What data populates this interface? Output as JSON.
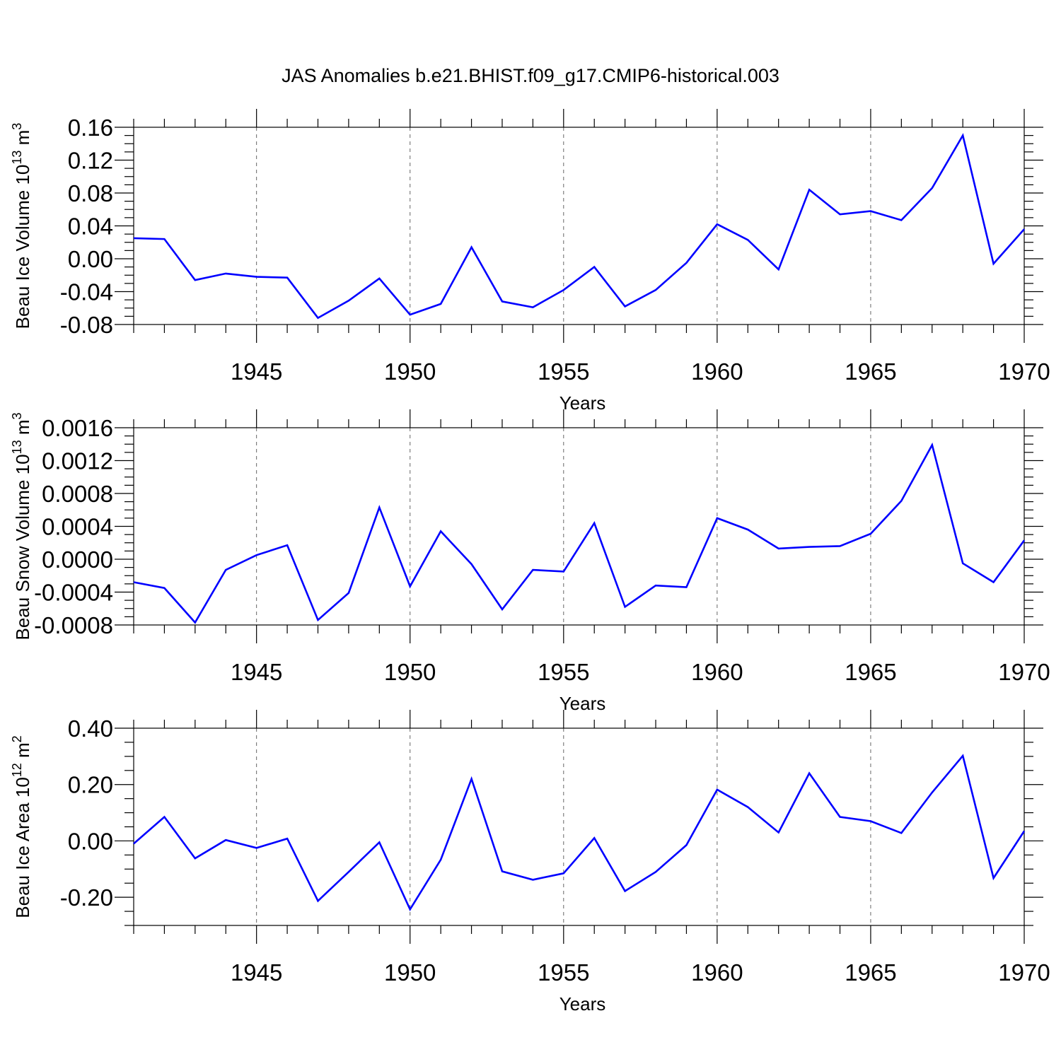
{
  "title": "JAS Anomalies b.e21.BHIST.f09_g17.CMIP6-historical.003",
  "colors": {
    "line": "#0000ff",
    "grid": "#666666",
    "axis": "#000000"
  },
  "chart_data": [
    {
      "type": "line",
      "x": [
        1941,
        1942,
        1943,
        1944,
        1945,
        1946,
        1947,
        1948,
        1949,
        1950,
        1951,
        1952,
        1953,
        1954,
        1955,
        1956,
        1957,
        1958,
        1959,
        1960,
        1961,
        1962,
        1963,
        1964,
        1965,
        1966,
        1967,
        1968,
        1969,
        1970
      ],
      "y": [
        0.025,
        0.024,
        -0.026,
        -0.018,
        -0.022,
        -0.023,
        -0.072,
        -0.051,
        -0.024,
        -0.068,
        -0.055,
        0.014,
        -0.052,
        -0.059,
        -0.038,
        -0.01,
        -0.058,
        -0.038,
        -0.005,
        0.042,
        0.023,
        -0.013,
        0.084,
        0.054,
        0.058,
        0.047,
        0.086,
        0.15,
        -0.006,
        0.036
      ],
      "xlim": [
        1941,
        1970
      ],
      "ylim": [
        -0.08,
        0.16
      ],
      "x_ticks": [
        1945,
        1950,
        1955,
        1960,
        1965,
        1970
      ],
      "y_ticks": [
        "0.16",
        "0.12",
        "0.08",
        "0.04",
        "0.00",
        "-0.04",
        "-0.08"
      ],
      "y_tick_values": [
        0.16,
        0.12,
        0.08,
        0.04,
        0.0,
        -0.04,
        -0.08
      ],
      "xlabel": "Years",
      "ylabel": {
        "base": "Beau Ice Volume 10",
        "exp": "13",
        "unit": " m",
        "unit_exp": "3"
      },
      "grid": "vertical dashed at major x ticks"
    },
    {
      "type": "line",
      "x": [
        1941,
        1942,
        1943,
        1944,
        1945,
        1946,
        1947,
        1948,
        1949,
        1950,
        1951,
        1952,
        1953,
        1954,
        1955,
        1956,
        1957,
        1958,
        1959,
        1960,
        1961,
        1962,
        1963,
        1964,
        1965,
        1966,
        1967,
        1968,
        1969,
        1970
      ],
      "y": [
        -0.00028,
        -0.00035,
        -0.00077,
        -0.00013,
        5e-05,
        0.00017,
        -0.00074,
        -0.00041,
        0.00063,
        -0.00033,
        0.00034,
        -6e-05,
        -0.00061,
        -0.00013,
        -0.00015,
        0.00044,
        -0.00058,
        -0.00032,
        -0.00034,
        0.0005,
        0.00036,
        0.00013,
        0.00015,
        0.00016,
        0.00031,
        0.00071,
        0.00139,
        -5e-05,
        -0.00028,
        0.00023
      ],
      "xlim": [
        1941,
        1970
      ],
      "ylim": [
        -0.0008,
        0.0016
      ],
      "x_ticks": [
        1945,
        1950,
        1955,
        1960,
        1965,
        1970
      ],
      "y_ticks": [
        "0.0016",
        "0.0012",
        "0.0008",
        "0.0004",
        "0.0000",
        "-0.0004",
        "-0.0008"
      ],
      "y_tick_values": [
        0.0016,
        0.0012,
        0.0008,
        0.0004,
        0.0,
        -0.0004,
        -0.0008
      ],
      "xlabel": "Years",
      "ylabel": {
        "base": "Beau Snow Volume 10",
        "exp": "13",
        "unit": " m",
        "unit_exp": "3"
      },
      "grid": "vertical dashed at major x ticks"
    },
    {
      "type": "line",
      "x": [
        1941,
        1942,
        1943,
        1944,
        1945,
        1946,
        1947,
        1948,
        1949,
        1950,
        1951,
        1952,
        1953,
        1954,
        1955,
        1956,
        1957,
        1958,
        1959,
        1960,
        1961,
        1962,
        1963,
        1964,
        1965,
        1966,
        1967,
        1968,
        1969,
        1970
      ],
      "y": [
        -0.01,
        0.085,
        -0.062,
        0.003,
        -0.025,
        0.008,
        -0.213,
        -0.11,
        -0.005,
        -0.243,
        -0.067,
        0.22,
        -0.108,
        -0.138,
        -0.115,
        0.01,
        -0.178,
        -0.11,
        -0.015,
        0.182,
        0.12,
        0.03,
        0.24,
        0.085,
        0.07,
        0.028,
        0.172,
        0.302,
        -0.132,
        0.035
      ],
      "xlim": [
        1941,
        1970
      ],
      "ylim": [
        -0.3,
        0.4
      ],
      "x_ticks": [
        1945,
        1950,
        1955,
        1960,
        1965,
        1970
      ],
      "y_ticks": [
        "0.40",
        "0.20",
        "0.00",
        "-0.20"
      ],
      "y_tick_values": [
        0.4,
        0.2,
        0.0,
        -0.2
      ],
      "xlabel": "Years",
      "ylabel": {
        "base": "Beau Ice Area 10",
        "exp": "12",
        "unit": " m",
        "unit_exp": "2"
      },
      "grid": "vertical dashed at major x ticks"
    }
  ]
}
